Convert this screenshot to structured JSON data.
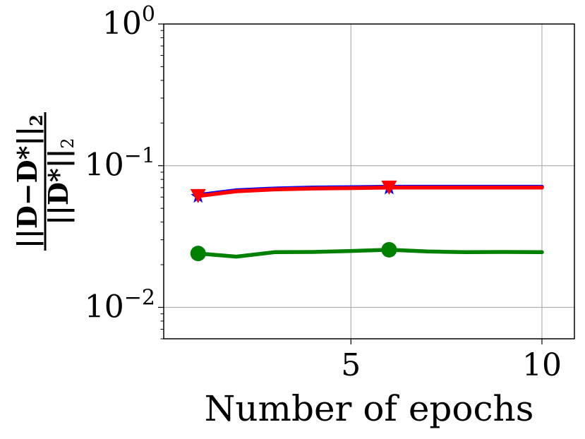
{
  "chart_data": {
    "type": "line",
    "title": "",
    "xlabel": "Number of epochs",
    "ylabel": {
      "numerator": "||D−D*||",
      "numerator_sub": "2",
      "denominator": "||D*||",
      "denominator_sub": "2"
    },
    "x": [
      1,
      2,
      3,
      4,
      5,
      6,
      7,
      8,
      9,
      10
    ],
    "xlim": [
      0.1,
      10.85
    ],
    "ylim": [
      0.006,
      1.0
    ],
    "yscale": "log",
    "grid": true,
    "x_ticks": [
      {
        "value": 5,
        "label": "5"
      },
      {
        "value": 10,
        "label": "10"
      }
    ],
    "y_ticks": [
      {
        "value": 0.01,
        "base": "10",
        "exp": "−2"
      },
      {
        "value": 0.1,
        "base": "10",
        "exp": "−1"
      },
      {
        "value": 1,
        "base": "10",
        "exp": "0"
      }
    ],
    "series": [
      {
        "color": "#0000ff",
        "marker": "star",
        "values": [
          0.062,
          0.067,
          0.069,
          0.07,
          0.0705,
          0.071,
          0.071,
          0.071,
          0.071,
          0.071
        ],
        "marker_indices": [
          0,
          5
        ]
      },
      {
        "color": "#ff0000",
        "marker": "triangle-down",
        "values": [
          0.061,
          0.066,
          0.068,
          0.069,
          0.0695,
          0.07,
          0.07,
          0.07,
          0.07,
          0.07
        ],
        "marker_indices": [
          0,
          5
        ]
      },
      {
        "color": "#008000",
        "marker": "circle",
        "values": [
          0.024,
          0.0228,
          0.0245,
          0.0246,
          0.025,
          0.0255,
          0.0248,
          0.0245,
          0.0246,
          0.0245
        ],
        "marker_indices": [
          0,
          5
        ]
      }
    ]
  }
}
